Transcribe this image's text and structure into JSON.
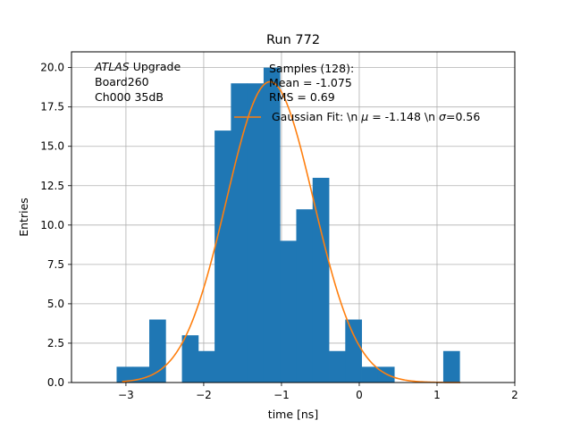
{
  "chart_data": {
    "type": "bar",
    "title": "Run 772",
    "xlabel": "time [ns]",
    "ylabel": "Entries",
    "xlim": [
      -3.7,
      2.0
    ],
    "ylim": [
      0,
      21
    ],
    "grid": true,
    "xticks": [
      {
        "value": -3,
        "label": "−3"
      },
      {
        "value": -2,
        "label": "−2"
      },
      {
        "value": -1,
        "label": "−1"
      },
      {
        "value": 0,
        "label": "0"
      },
      {
        "value": 1,
        "label": "1"
      },
      {
        "value": 2,
        "label": "2"
      }
    ],
    "yticks": [
      {
        "value": 0,
        "label": "0.0"
      },
      {
        "value": 2.5,
        "label": "2.5"
      },
      {
        "value": 5,
        "label": "5.0"
      },
      {
        "value": 7.5,
        "label": "7.5"
      },
      {
        "value": 10,
        "label": "10.0"
      },
      {
        "value": 12.5,
        "label": "12.5"
      },
      {
        "value": 15,
        "label": "15.0"
      },
      {
        "value": 17.5,
        "label": "17.5"
      },
      {
        "value": 20,
        "label": "20.0"
      }
    ],
    "histogram": {
      "color": "#1f77b4",
      "bins": [
        {
          "x0": -3.12,
          "x1": -2.91,
          "count": 1
        },
        {
          "x0": -2.91,
          "x1": -2.7,
          "count": 1
        },
        {
          "x0": -2.7,
          "x1": -2.49,
          "count": 4
        },
        {
          "x0": -2.49,
          "x1": -2.28,
          "count": 0
        },
        {
          "x0": -2.28,
          "x1": -2.07,
          "count": 3
        },
        {
          "x0": -2.07,
          "x1": -1.86,
          "count": 2
        },
        {
          "x0": -1.86,
          "x1": -1.65,
          "count": 16
        },
        {
          "x0": -1.65,
          "x1": -1.44,
          "count": 19
        },
        {
          "x0": -1.44,
          "x1": -1.23,
          "count": 19
        },
        {
          "x0": -1.23,
          "x1": -1.02,
          "count": 20
        },
        {
          "x0": -1.02,
          "x1": -0.81,
          "count": 9
        },
        {
          "x0": -0.81,
          "x1": -0.6,
          "count": 11
        },
        {
          "x0": -0.6,
          "x1": -0.39,
          "count": 13
        },
        {
          "x0": -0.39,
          "x1": -0.18,
          "count": 2
        },
        {
          "x0": -0.18,
          "x1": 0.03,
          "count": 4
        },
        {
          "x0": 0.03,
          "x1": 0.24,
          "count": 1
        },
        {
          "x0": 0.24,
          "x1": 0.45,
          "count": 1
        },
        {
          "x0": 0.45,
          "x1": 0.66,
          "count": 0
        },
        {
          "x0": 0.66,
          "x1": 0.87,
          "count": 0
        },
        {
          "x0": 0.87,
          "x1": 1.08,
          "count": 0
        },
        {
          "x0": 1.08,
          "x1": 1.29,
          "count": 2
        }
      ]
    },
    "fit": {
      "color": "#ff7f0e",
      "mu": -1.148,
      "sigma": 0.56,
      "amplitude": 19.1,
      "x_range": [
        -3.05,
        1.3
      ]
    },
    "annotation": {
      "italic_word": "ATLAS",
      "line1_rest": " Upgrade",
      "line2": " Board260",
      "line3": " Ch000 35dB"
    },
    "stats": {
      "line1": "Samples (128):",
      "line2": " Mean = -1.075",
      "line3": " RMS = 0.69"
    },
    "legend": {
      "placement": "upper-right",
      "fit_label_a": "Gaussian Fit: \\n ",
      "fit_label_mu": "μ",
      "fit_label_b": " = -1.148 \\n ",
      "fit_label_sigma": "σ",
      "fit_label_c": "=0.56"
    }
  }
}
